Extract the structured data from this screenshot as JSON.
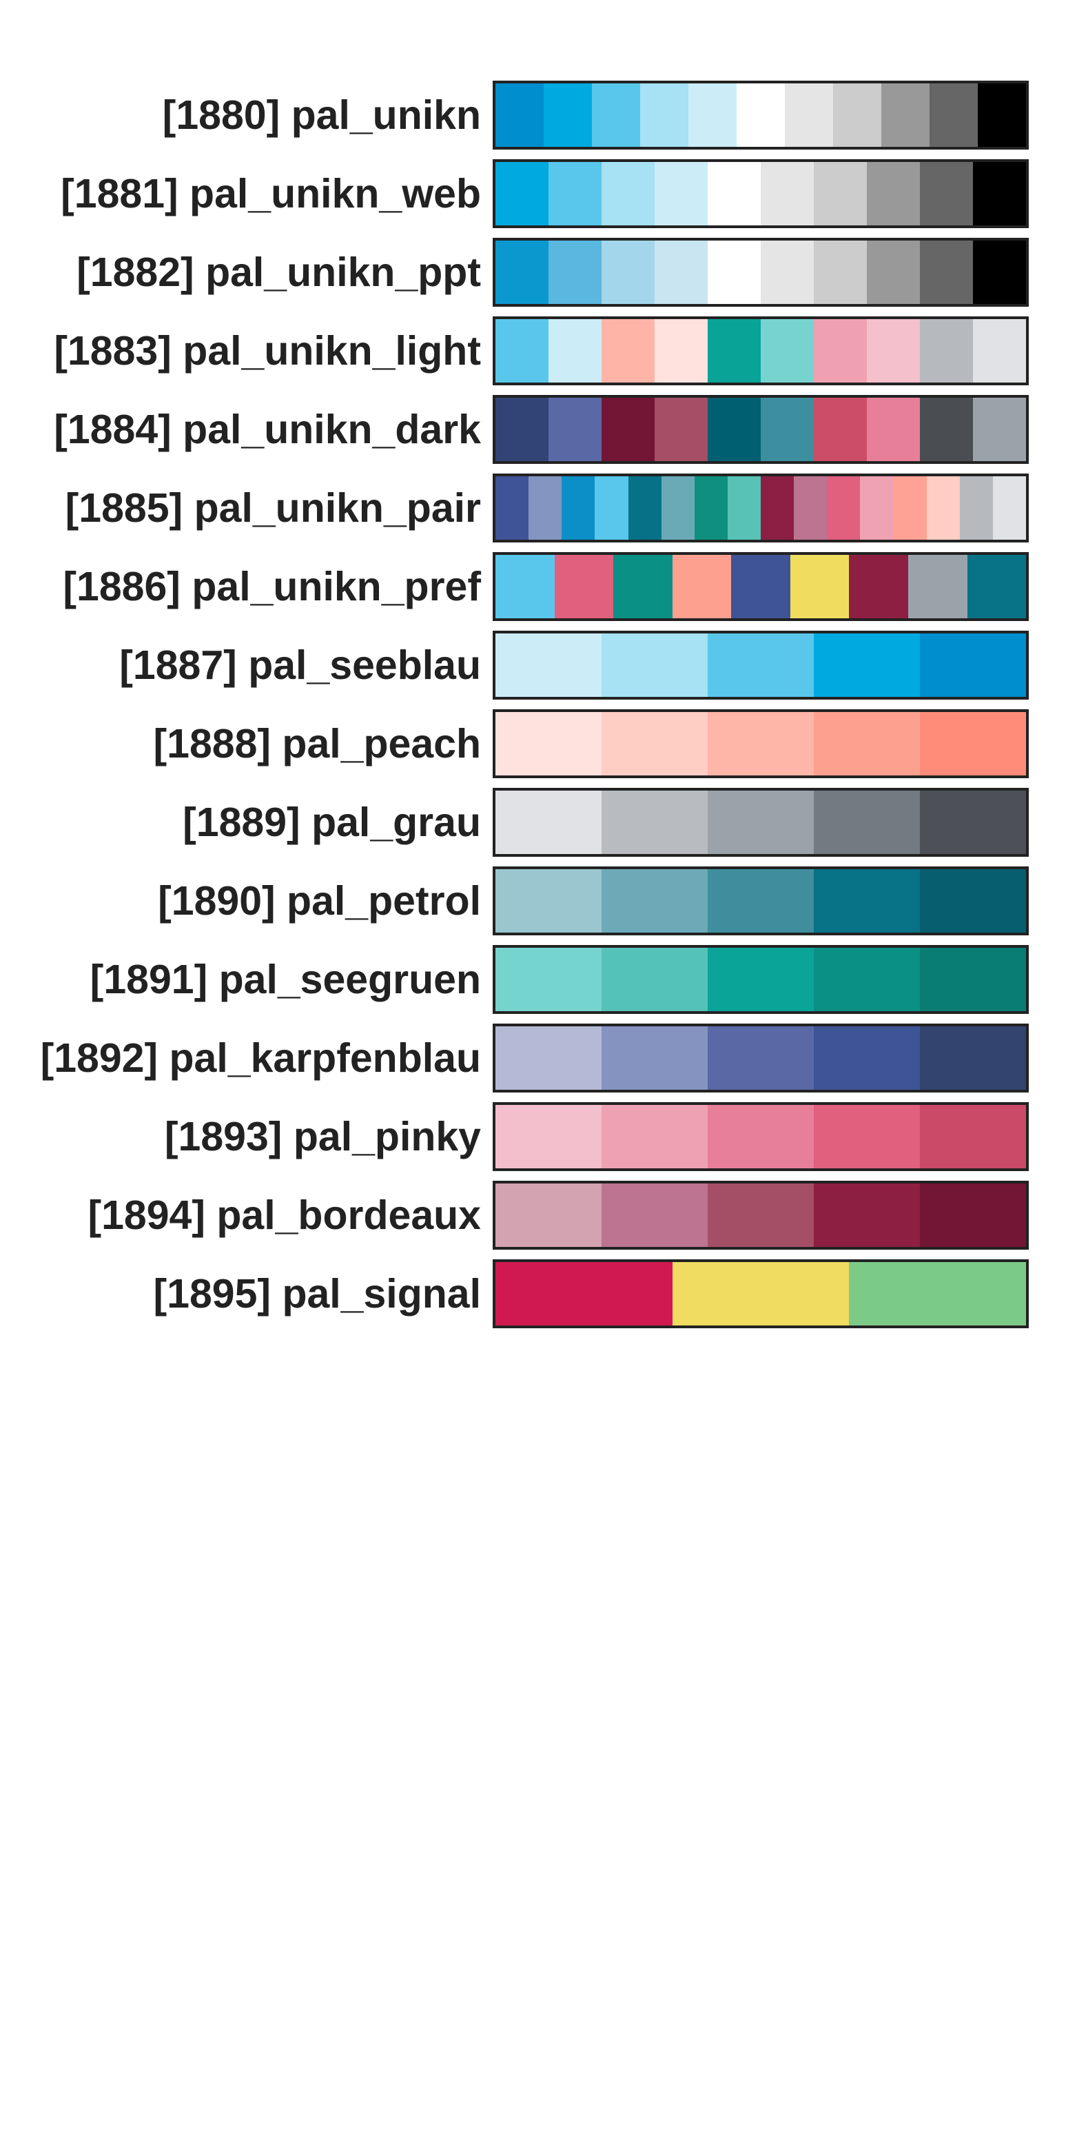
{
  "palettes": [
    {
      "label": "[1880] pal_unikn",
      "colors": [
        "#008ECE",
        "#00A9E0",
        "#59C7EB",
        "#A6E1F4",
        "#CCECF7",
        "#FFFFFF",
        "#E5E5E5",
        "#CCCCCC",
        "#999999",
        "#666666",
        "#000000"
      ]
    },
    {
      "label": "[1881] pal_unikn_web",
      "colors": [
        "#00A9E0",
        "#59C7EB",
        "#A6E1F4",
        "#CCECF7",
        "#FFFFFF",
        "#E5E5E5",
        "#CCCCCC",
        "#999999",
        "#666666",
        "#000000"
      ]
    },
    {
      "label": "[1882] pal_unikn_ppt",
      "colors": [
        "#0A98CE",
        "#59B7E0",
        "#A3D6EA",
        "#C9E5F1",
        "#FFFFFF",
        "#E5E5E5",
        "#CCCCCC",
        "#999999",
        "#666666",
        "#000000"
      ]
    },
    {
      "label": "[1883] pal_unikn_light",
      "colors": [
        "#59C7EB",
        "#CCECF7",
        "#FEB5A8",
        "#FFE2DE",
        "#0AA398",
        "#77D3CE",
        "#EFA1B2",
        "#F4C0CC",
        "#B6BABF",
        "#E1E2E5"
      ]
    },
    {
      "label": "[1884] pal_unikn_dark",
      "colors": [
        "#324476",
        "#5A68A6",
        "#731534",
        "#A54E66",
        "#005F70",
        "#3D8E9E",
        "#CB4D68",
        "#E87F99",
        "#4A4E52",
        "#9BA3AA"
      ]
    },
    {
      "label": "[1885] pal_unikn_pair",
      "colors": [
        "#3E5496",
        "#8595C1",
        "#0C8EC6",
        "#59C7EB",
        "#077187",
        "#6AAAB7",
        "#0F907E",
        "#57C2B5",
        "#8C1F43",
        "#BC7490",
        "#E0607E",
        "#EFA2B2",
        "#FEA293",
        "#FFCDC4",
        "#B6BABF",
        "#E1E2E5"
      ]
    },
    {
      "label": "[1886] pal_unikn_pref",
      "colors": [
        "#59C7EB",
        "#E0607E",
        "#0A9085",
        "#FEA090",
        "#3E5496",
        "#F0DD5F",
        "#8D1F42",
        "#9BA3AA",
        "#087286"
      ]
    },
    {
      "label": "[1887] pal_seeblau",
      "colors": [
        "#CCECF7",
        "#A6E1F4",
        "#59C7EB",
        "#00A9E0",
        "#008ECE"
      ]
    },
    {
      "label": "[1888] pal_peach",
      "colors": [
        "#FFE2DE",
        "#FECDC4",
        "#FEB6A9",
        "#FEA090",
        "#FE8C78"
      ]
    },
    {
      "label": "[1889] pal_grau",
      "colors": [
        "#E1E2E5",
        "#B8BCC0",
        "#9BA2AA",
        "#747A82",
        "#4D5157"
      ]
    },
    {
      "label": "[1890] pal_petrol",
      "colors": [
        "#9AC6D0",
        "#6BAAB6",
        "#3E8E9E",
        "#087286",
        "#065E6E"
      ]
    },
    {
      "label": "[1891] pal_seegruen",
      "colors": [
        "#75D4CE",
        "#55C2B7",
        "#0AA499",
        "#0A9085",
        "#097C73"
      ]
    },
    {
      "label": "[1892] pal_karpfenblau",
      "colors": [
        "#B4BAD6",
        "#8593C1",
        "#5A68A6",
        "#3E5496",
        "#33446F"
      ]
    },
    {
      "label": "[1893] pal_pinky",
      "colors": [
        "#F3BFCC",
        "#EEA1B2",
        "#E87F99",
        "#E0607E",
        "#CA4A67"
      ]
    },
    {
      "label": "[1894] pal_bordeaux",
      "colors": [
        "#D4A3B2",
        "#BC7490",
        "#A54F67",
        "#8D1F42",
        "#731534"
      ]
    },
    {
      "label": "[1895] pal_signal",
      "colors": [
        "#D11951",
        "#F0DC60",
        "#7CCA87"
      ]
    }
  ]
}
